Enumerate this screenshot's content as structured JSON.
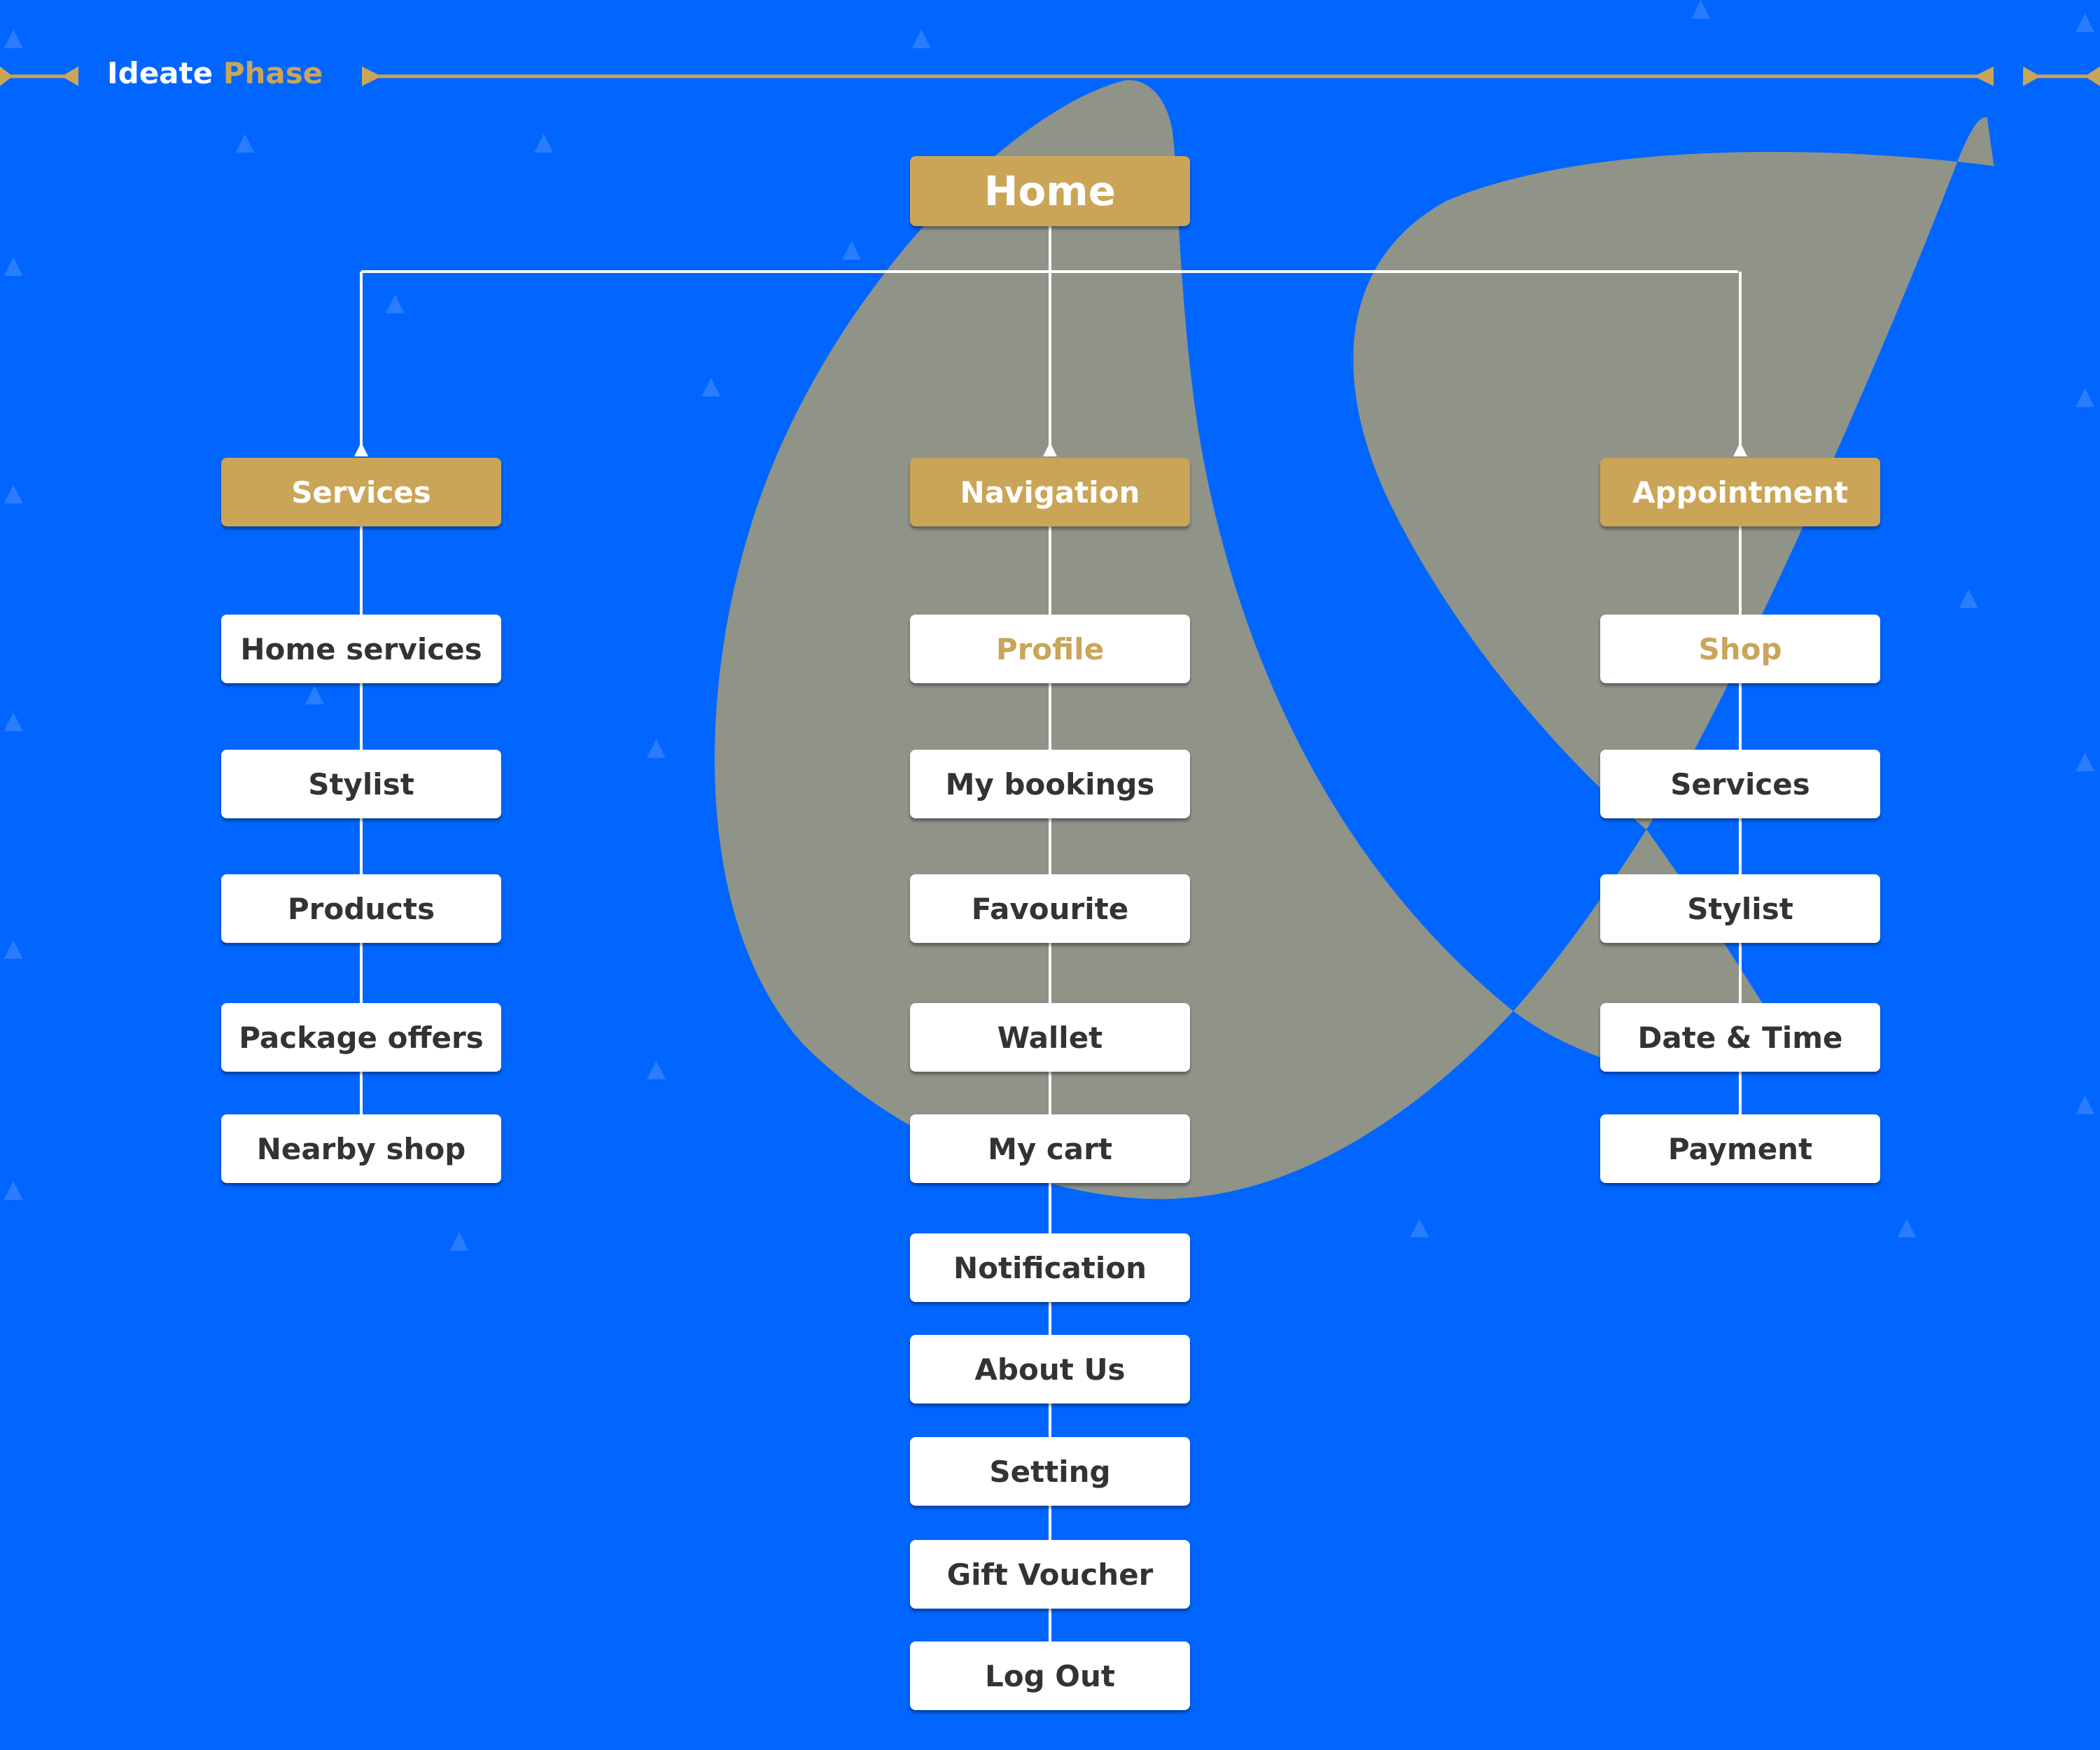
{
  "header": {
    "title_part1": "Ideate",
    "title_part2": "Phase"
  },
  "colors": {
    "background": "#0066ff",
    "gold": "#cba557",
    "blob": "#8f9388",
    "text": "#333333",
    "highlight": "#c9a55a"
  },
  "root": {
    "label": "Home"
  },
  "columns": [
    {
      "label": "Services",
      "items": [
        {
          "label": "Home services"
        },
        {
          "label": "Stylist"
        },
        {
          "label": "Products"
        },
        {
          "label": "Package offers"
        },
        {
          "label": "Nearby shop"
        }
      ]
    },
    {
      "label": "Navigation",
      "items": [
        {
          "label": "Profile",
          "highlight": true
        },
        {
          "label": "My bookings"
        },
        {
          "label": "Favourite"
        },
        {
          "label": "Wallet"
        },
        {
          "label": "My cart"
        },
        {
          "label": "Notification"
        },
        {
          "label": "About Us"
        },
        {
          "label": "Setting"
        },
        {
          "label": "Gift Voucher"
        },
        {
          "label": "Log Out"
        }
      ]
    },
    {
      "label": "Appointment",
      "items": [
        {
          "label": "Shop",
          "highlight": true
        },
        {
          "label": "Services"
        },
        {
          "label": "Stylist"
        },
        {
          "label": "Date & Time"
        },
        {
          "label": "Payment"
        }
      ]
    }
  ]
}
